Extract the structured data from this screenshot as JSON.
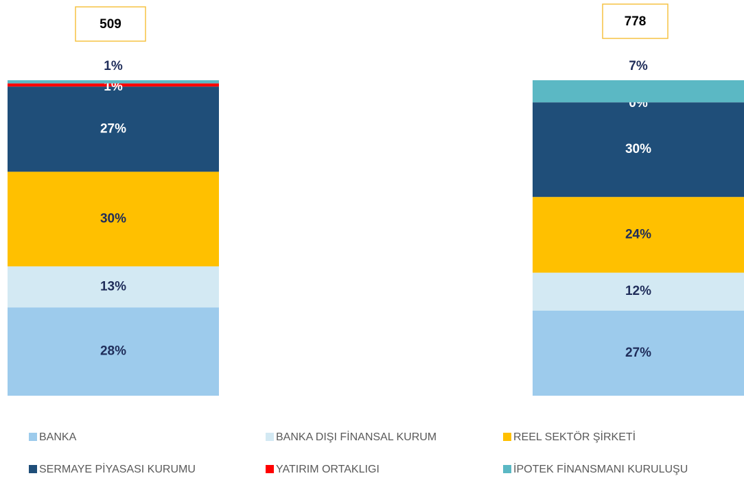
{
  "chart_data": {
    "type": "stacked_bar_100",
    "categories": [
      null,
      null
    ],
    "totals": [
      509,
      778
    ],
    "series": [
      {
        "name": "BANKA",
        "color": "#9dcbec",
        "values": [
          28,
          27
        ],
        "value_labels": [
          "28%",
          "27%"
        ]
      },
      {
        "name": "BANKA DIŞI FİNANSAL KURUM",
        "color": "#d3e9f3",
        "values": [
          13,
          12
        ],
        "value_labels": [
          "13%",
          "12%"
        ]
      },
      {
        "name": "REEL SEKTÖR ŞİRKETİ",
        "color": "#ffc000",
        "values": [
          30,
          24
        ],
        "value_labels": [
          "30%",
          "24%"
        ]
      },
      {
        "name": "SERMAYE PİYASASI KURUMU",
        "color": "#1f4e79",
        "values": [
          27,
          30
        ],
        "value_labels": [
          "27%",
          "30%"
        ]
      },
      {
        "name": "YATIRIM ORTAKLIGI",
        "color": "#ff0000",
        "values": [
          1,
          0
        ],
        "value_labels": [
          "1%",
          "0%"
        ]
      },
      {
        "name": "İPOTEK FİNANSMANI KURULUŞU",
        "color": "#5bb8c4",
        "values": [
          1,
          7
        ],
        "value_labels": [
          "1%",
          "7%"
        ]
      }
    ],
    "ylim": [
      0,
      100
    ]
  }
}
